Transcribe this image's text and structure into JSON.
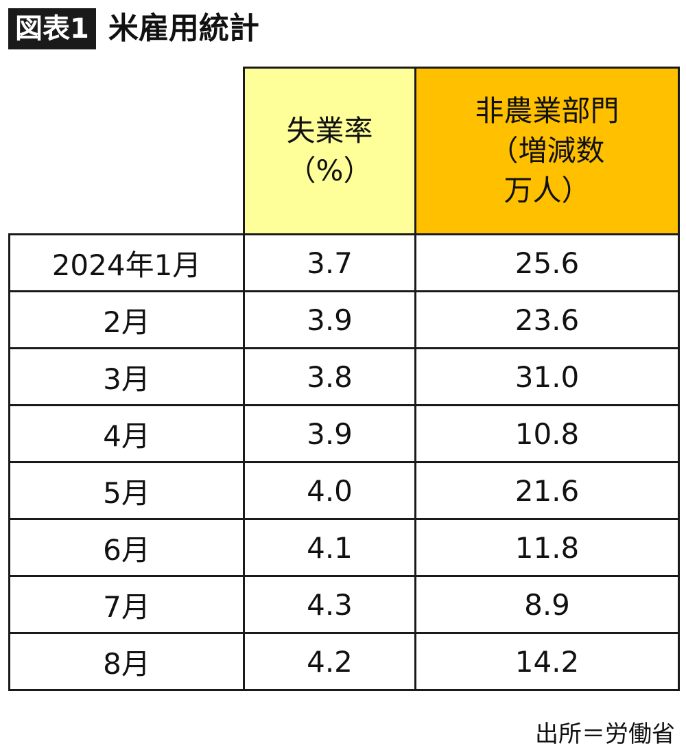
{
  "header": {
    "badge": "図表1",
    "title": "米雇用統計"
  },
  "table": {
    "col_rate": {
      "line1": "失業率",
      "line2": "（%）"
    },
    "col_nfp": {
      "line1": "非農業部門",
      "line2": "（増減数",
      "line3": "万人）"
    },
    "rows": [
      {
        "label": "2024年1月",
        "rate": "3.7",
        "nfp": "25.6"
      },
      {
        "label": "2月",
        "rate": "3.9",
        "nfp": "23.6"
      },
      {
        "label": "3月",
        "rate": "3.8",
        "nfp": "31.0"
      },
      {
        "label": "4月",
        "rate": "3.9",
        "nfp": "10.8"
      },
      {
        "label": "5月",
        "rate": "4.0",
        "nfp": "21.6"
      },
      {
        "label": "6月",
        "rate": "4.1",
        "nfp": "11.8"
      },
      {
        "label": "7月",
        "rate": "4.3",
        "nfp": "8.9"
      },
      {
        "label": "8月",
        "rate": "4.2",
        "nfp": "14.2"
      }
    ]
  },
  "footer": {
    "source": "出所＝労働省"
  },
  "colors": {
    "rate_header": "#ffff99",
    "nfp_header": "#ffc000",
    "badge_bg": "#1a1a1a"
  }
}
